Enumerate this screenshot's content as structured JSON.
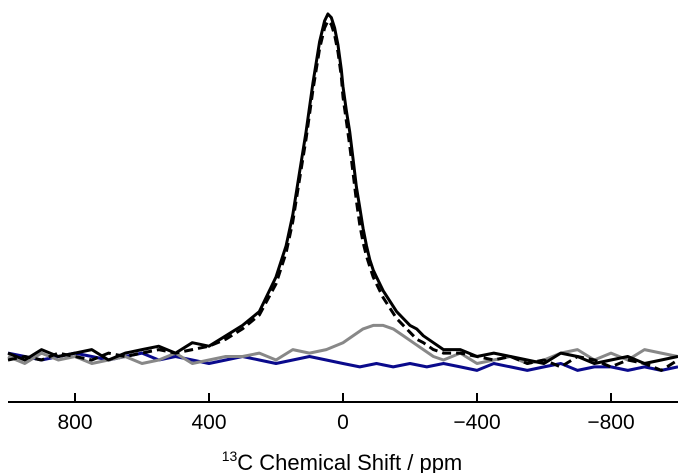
{
  "chart_data": {
    "type": "line",
    "title": "",
    "xlabel_prefix": "13",
    "xlabel": "C Chemical Shift / ppm",
    "ylabel": "",
    "xlim": [
      1000,
      -1000
    ],
    "ylim": [
      -0.06,
      1.05
    ],
    "x_reversed": true,
    "grid": false,
    "legend": "none",
    "xticks": [
      800,
      400,
      0,
      -400,
      -800
    ],
    "xtick_labels": [
      "800",
      "400",
      "0",
      "−400",
      "−800"
    ],
    "series": [
      {
        "color": "#000000",
        "style": "solid",
        "x": [
          1000,
          950,
          900,
          850,
          800,
          750,
          700,
          650,
          600,
          550,
          500,
          450,
          400,
          350,
          300,
          250,
          200,
          170,
          150,
          130,
          110,
          90,
          70,
          55,
          45,
          35,
          25,
          15,
          5,
          0,
          -10,
          -20,
          -30,
          -40,
          -50,
          -60,
          -70,
          -80,
          -90,
          -100,
          -120,
          -140,
          -160,
          -180,
          -200,
          -220,
          -240,
          -270,
          -300,
          -350,
          -400,
          -450,
          -500,
          -550,
          -600,
          -650,
          -700,
          -750,
          -800,
          -850,
          -900,
          -950,
          -1000
        ],
        "y": [
          0.02,
          0.0,
          0.03,
          0.01,
          0.02,
          0.03,
          0.0,
          0.02,
          0.03,
          0.04,
          0.02,
          0.05,
          0.04,
          0.07,
          0.1,
          0.14,
          0.24,
          0.33,
          0.42,
          0.54,
          0.66,
          0.8,
          0.92,
          0.98,
          1.0,
          0.99,
          0.96,
          0.91,
          0.84,
          0.79,
          0.72,
          0.66,
          0.58,
          0.5,
          0.44,
          0.38,
          0.33,
          0.29,
          0.26,
          0.24,
          0.2,
          0.17,
          0.14,
          0.12,
          0.1,
          0.09,
          0.07,
          0.05,
          0.03,
          0.03,
          0.01,
          0.02,
          0.01,
          0.0,
          -0.01,
          0.02,
          0.01,
          -0.01,
          0.0,
          0.01,
          -0.01,
          0.0,
          0.01
        ]
      },
      {
        "color": "#000000",
        "style": "dashed",
        "x": [
          1000,
          950,
          900,
          850,
          800,
          750,
          700,
          650,
          600,
          550,
          500,
          450,
          400,
          350,
          300,
          250,
          200,
          170,
          150,
          130,
          110,
          90,
          70,
          55,
          45,
          35,
          25,
          15,
          5,
          0,
          -10,
          -20,
          -30,
          -40,
          -50,
          -60,
          -70,
          -80,
          -90,
          -100,
          -120,
          -140,
          -160,
          -180,
          -200,
          -220,
          -240,
          -270,
          -300,
          -350,
          -400,
          -450,
          -500,
          -550,
          -600,
          -650,
          -700,
          -750,
          -800,
          -850,
          -900,
          -950,
          -1000
        ],
        "y": [
          0.0,
          0.01,
          0.0,
          0.02,
          0.01,
          0.0,
          0.02,
          0.01,
          0.02,
          0.03,
          0.02,
          0.03,
          0.04,
          0.06,
          0.09,
          0.13,
          0.22,
          0.31,
          0.4,
          0.52,
          0.64,
          0.78,
          0.9,
          0.96,
          0.98,
          0.97,
          0.94,
          0.89,
          0.82,
          0.76,
          0.69,
          0.62,
          0.54,
          0.46,
          0.39,
          0.34,
          0.3,
          0.27,
          0.24,
          0.22,
          0.18,
          0.15,
          0.12,
          0.1,
          0.08,
          0.06,
          0.05,
          0.03,
          0.02,
          0.02,
          0.01,
          0.0,
          0.01,
          -0.01,
          0.0,
          -0.02,
          0.01,
          0.0,
          -0.02,
          0.0,
          -0.01,
          -0.03,
          0.0
        ]
      },
      {
        "color": "#888888",
        "style": "solid",
        "x": [
          1000,
          950,
          900,
          850,
          800,
          750,
          700,
          650,
          600,
          550,
          500,
          450,
          400,
          350,
          300,
          250,
          200,
          150,
          100,
          50,
          0,
          -30,
          -60,
          -90,
          -120,
          -150,
          -180,
          -210,
          -240,
          -270,
          -300,
          -350,
          -400,
          -450,
          -500,
          -550,
          -600,
          -650,
          -700,
          -750,
          -800,
          -850,
          -900,
          -950,
          -1000
        ],
        "y": [
          0.01,
          -0.01,
          0.02,
          0.0,
          0.01,
          -0.01,
          0.0,
          0.01,
          -0.01,
          0.0,
          0.02,
          -0.01,
          0.0,
          0.01,
          0.01,
          0.02,
          0.0,
          0.03,
          0.02,
          0.03,
          0.05,
          0.07,
          0.09,
          0.1,
          0.1,
          0.09,
          0.07,
          0.05,
          0.03,
          0.01,
          0.0,
          0.02,
          -0.01,
          0.0,
          0.01,
          -0.01,
          0.0,
          0.02,
          0.03,
          0.0,
          0.02,
          0.0,
          0.03,
          0.02,
          0.01
        ]
      },
      {
        "color": "#0a0a8c",
        "style": "solid",
        "x": [
          1000,
          950,
          900,
          850,
          800,
          750,
          700,
          650,
          600,
          550,
          500,
          450,
          400,
          350,
          300,
          250,
          200,
          150,
          100,
          50,
          0,
          -50,
          -100,
          -150,
          -200,
          -250,
          -300,
          -350,
          -400,
          -450,
          -500,
          -550,
          -600,
          -650,
          -700,
          -750,
          -800,
          -850,
          -900,
          -950,
          -1000
        ],
        "y": [
          0.02,
          0.01,
          0.0,
          0.01,
          0.02,
          0.01,
          0.0,
          0.01,
          0.02,
          0.0,
          0.01,
          0.0,
          -0.01,
          0.0,
          0.01,
          0.0,
          -0.01,
          0.0,
          0.01,
          0.0,
          -0.01,
          -0.02,
          -0.01,
          -0.02,
          -0.01,
          -0.02,
          -0.01,
          -0.02,
          -0.03,
          -0.01,
          -0.02,
          -0.03,
          -0.02,
          -0.01,
          -0.03,
          -0.02,
          -0.02,
          -0.03,
          -0.02,
          -0.03,
          -0.02
        ]
      }
    ]
  }
}
